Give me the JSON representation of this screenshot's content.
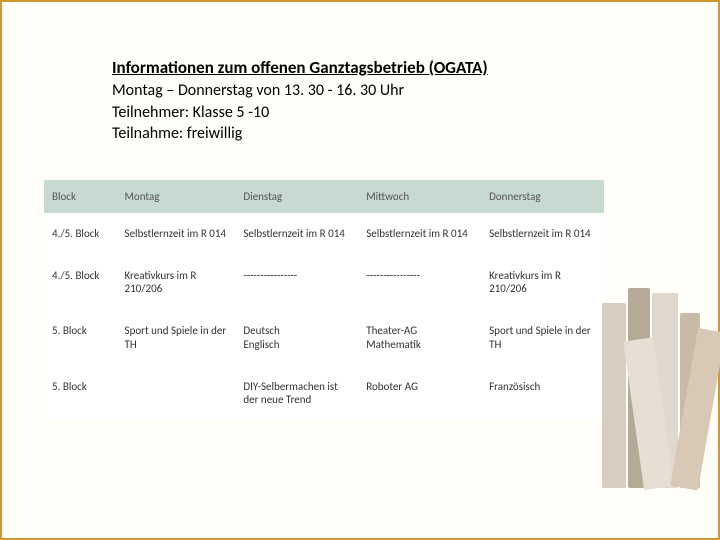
{
  "header": {
    "title": "Informationen zum offenen Ganztagsbetrieb (OGATA)",
    "line1": "Montag – Donnerstag von 13. 30 - 16. 30 Uhr",
    "line2": "Teilnehmer: Klasse 5 -10",
    "line3": "Teilnahme: freiwillig"
  },
  "table": {
    "columns": [
      "Block",
      "Montag",
      "Dienstag",
      "Mittwoch",
      "Donnerstag"
    ],
    "rows": [
      {
        "label": "4./5. Block",
        "cells": [
          "Selbstlernzeit im R 014",
          "Selbstlernzeit im R 014",
          "Selbstlernzeit im R 014",
          "Selbstlernzeit im R 014"
        ]
      },
      {
        "label": "4./5. Block",
        "cells": [
          "Kreativkurs im R 210/206",
          "----------------",
          "----------------",
          "Kreativkurs im R 210/206"
        ]
      },
      {
        "label": "5. Block",
        "cells": [
          "Sport und Spiele in der TH",
          "Deutsch\nEnglisch",
          "Theater-AG\nMathematik",
          "Sport und Spiele in der TH"
        ]
      },
      {
        "label": "5. Block",
        "cells": [
          "",
          "DIY-Selbermachen ist der neue Trend",
          "Roboter AG",
          "Französisch"
        ]
      }
    ],
    "header_bg": "#c6dad1",
    "cell_bg": "#ffffff",
    "font_size": 11,
    "border_color": "#cc9933",
    "page_bg": "#fffef8"
  }
}
